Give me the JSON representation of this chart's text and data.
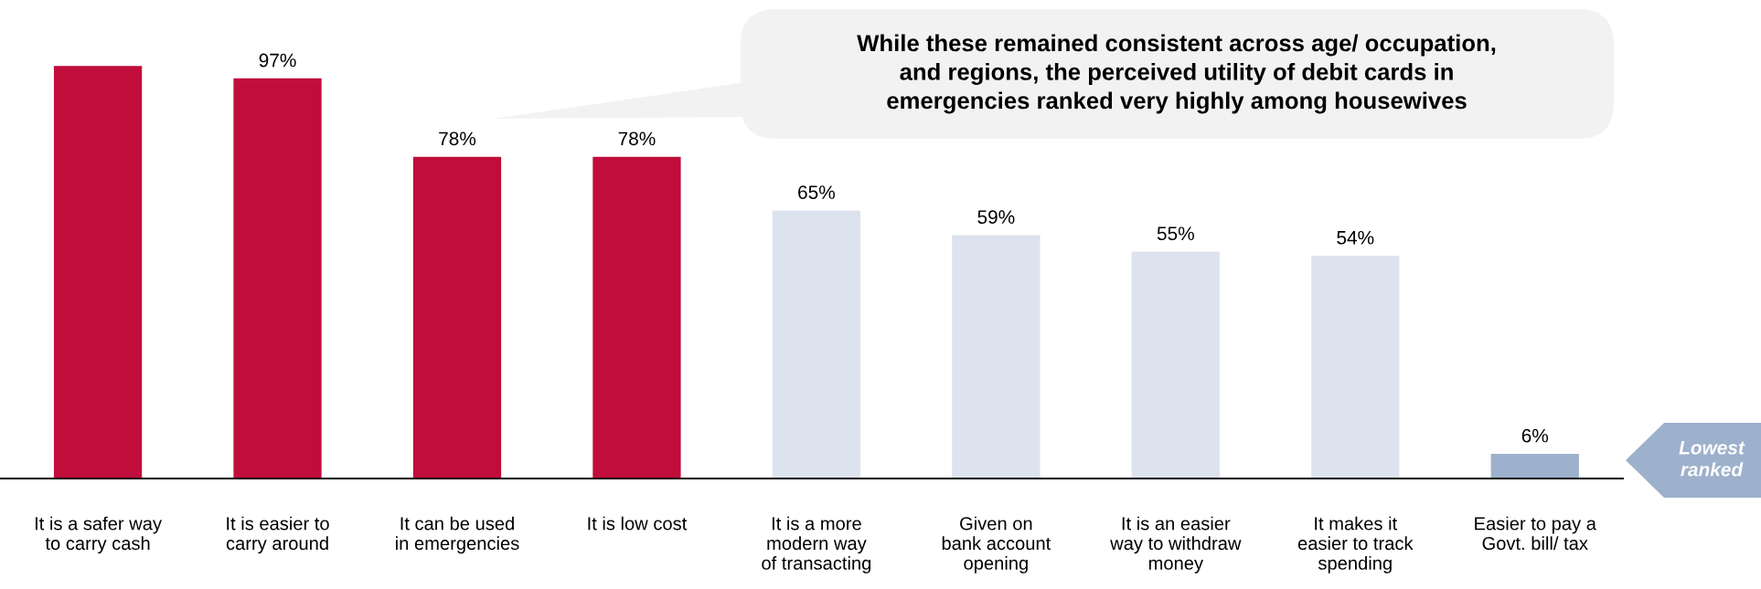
{
  "chart_data": {
    "type": "bar",
    "categories": [
      "It is a safer way\nto carry cash",
      "It is easier to\ncarry around",
      "It can be used\nin emergencies",
      "It is low cost",
      "It is a more\nmodern way\nof transacting",
      "Given on\nbank account\nopening",
      "It is an easier\nway to withdraw\nmoney",
      "It makes it\neasier to track\nspending",
      "Easier to pay a\nGovt. bill/ tax"
    ],
    "values": [
      100,
      97,
      78,
      78,
      65,
      59,
      55,
      54,
      6
    ],
    "colors": [
      "#c00d3c",
      "#c00d3c",
      "#c00d3c",
      "#c00d3c",
      "#dde3ee",
      "#dde3ee",
      "#dde3ee",
      "#dde3ee",
      "#9db0cc"
    ],
    "value_labels": [
      null,
      "97%",
      "78%",
      "78%",
      "65%",
      "59%",
      "55%",
      "54%",
      "6%"
    ],
    "annotations": [
      "While these remained consistent across age/ occupation,\nand regions, the perceived utility of debit cards in\nemergencies ranked very highly among housewives",
      "Lowest\nranked"
    ],
    "grid": false,
    "legend": false
  }
}
